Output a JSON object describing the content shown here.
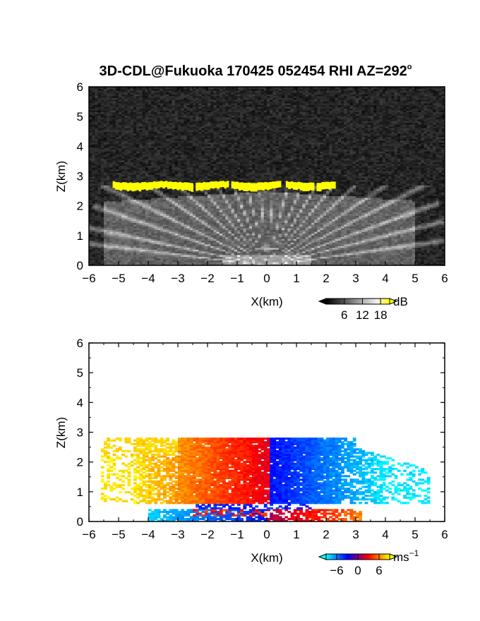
{
  "title": "3D-CDL@Fukuoka 170425 052454 RHI AZ=292",
  "title_degree_mark": "o",
  "chart_data": [
    {
      "type": "heatmap",
      "panel": "backscatter",
      "xlabel": "X(km)",
      "ylabel": "Z(km)",
      "xlim": [
        -6,
        6
      ],
      "ylim": [
        0,
        6
      ],
      "xticks": [
        "−6",
        "−5",
        "−4",
        "−3",
        "−2",
        "−1",
        "0",
        "1",
        "2",
        "3",
        "4",
        "5",
        "6"
      ],
      "yticks": [
        "0",
        "1",
        "2",
        "3",
        "4",
        "5",
        "6"
      ],
      "colorbar": {
        "unit": "dB",
        "tick_labels": [
          "6",
          "12",
          "18"
        ],
        "tick_values": [
          6,
          12,
          18
        ],
        "range": [
          0,
          21
        ],
        "colors": [
          "#000000",
          "#3a3a3a",
          "#7a7a7a",
          "#b8b8b8",
          "#f0f0f0",
          "#ffff00"
        ]
      },
      "features": {
        "high_return_layer": {
          "x_range": [
            -5.2,
            2.3
          ],
          "z_range": [
            2.55,
            2.8
          ],
          "level": "above 18 dB",
          "color": "#ffff00"
        },
        "boundary_layer_fan": {
          "x_range": [
            -5.5,
            5.0
          ],
          "z_top": 2.5,
          "level": "about 8-14 dB"
        },
        "background": {
          "level": "about 0-6 dB noise"
        }
      }
    },
    {
      "type": "heatmap",
      "panel": "radial_velocity",
      "xlabel": "X(km)",
      "ylabel": "Z(km)",
      "xlim": [
        -6,
        6
      ],
      "ylim": [
        0,
        6
      ],
      "xticks": [
        "−6",
        "−5",
        "−4",
        "−3",
        "−2",
        "−1",
        "0",
        "1",
        "2",
        "3",
        "4",
        "5",
        "6"
      ],
      "yticks": [
        "0",
        "1",
        "2",
        "3",
        "4",
        "5",
        "6"
      ],
      "colorbar": {
        "unit": "ms",
        "unit_exponent": "−1",
        "tick_labels": [
          "−6",
          "0",
          "6"
        ],
        "tick_values": [
          -6,
          0,
          6
        ],
        "range": [
          -9,
          9
        ],
        "colors": [
          "#00ffff",
          "#0000ff",
          "#ff0000",
          "#ffff00"
        ]
      },
      "features": {
        "left_of_lidar": {
          "x_range": [
            -6.0,
            0.0
          ],
          "z_range": [
            0.6,
            2.85
          ],
          "velocity_ms": [
            3,
            8
          ]
        },
        "right_of_lidar": {
          "x_range": [
            0.0,
            5.5
          ],
          "z_range": [
            0.6,
            2.8
          ],
          "velocity_ms": [
            -8,
            -3
          ]
        },
        "near_surface_left": {
          "x_range": [
            -4.0,
            0.0
          ],
          "z_range": [
            0.0,
            0.4
          ],
          "velocity_ms": [
            -8,
            -4
          ]
        },
        "near_surface_right": {
          "x_range": [
            0.0,
            3.2
          ],
          "z_range": [
            0.0,
            0.4
          ],
          "velocity_ms": [
            1,
            6
          ]
        }
      }
    }
  ]
}
